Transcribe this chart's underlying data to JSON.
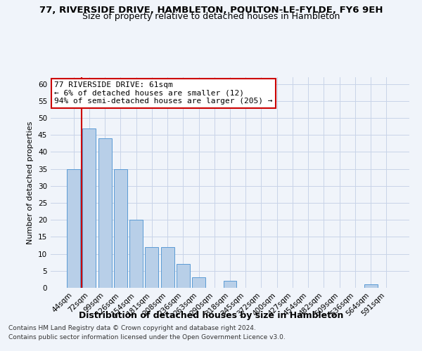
{
  "title1": "77, RIVERSIDE DRIVE, HAMBLETON, POULTON-LE-FYLDE, FY6 9EH",
  "title2": "Size of property relative to detached houses in Hambleton",
  "xlabel": "Distribution of detached houses by size in Hambleton",
  "ylabel": "Number of detached properties",
  "categories": [
    "44sqm",
    "72sqm",
    "99sqm",
    "126sqm",
    "154sqm",
    "181sqm",
    "208sqm",
    "236sqm",
    "263sqm",
    "290sqm",
    "318sqm",
    "345sqm",
    "372sqm",
    "400sqm",
    "427sqm",
    "454sqm",
    "482sqm",
    "509sqm",
    "536sqm",
    "564sqm",
    "591sqm"
  ],
  "values": [
    35,
    47,
    44,
    35,
    20,
    12,
    12,
    7,
    3,
    0,
    2,
    0,
    0,
    0,
    0,
    0,
    0,
    0,
    0,
    1,
    0
  ],
  "bar_color": "#b8cfe8",
  "bar_edge_color": "#5b9bd5",
  "annotation_text": "77 RIVERSIDE DRIVE: 61sqm\n← 6% of detached houses are smaller (12)\n94% of semi-detached houses are larger (205) →",
  "annotation_box_color": "white",
  "annotation_box_edge_color": "#cc0000",
  "vline_color": "#cc0000",
  "vline_pos": 0.5,
  "ylim": [
    0,
    62
  ],
  "yticks": [
    0,
    5,
    10,
    15,
    20,
    25,
    30,
    35,
    40,
    45,
    50,
    55,
    60
  ],
  "grid_color": "#c8d4e8",
  "footer1": "Contains HM Land Registry data © Crown copyright and database right 2024.",
  "footer2": "Contains public sector information licensed under the Open Government Licence v3.0.",
  "bg_color": "#f0f4fa",
  "title1_fontsize": 9.5,
  "title2_fontsize": 9,
  "xlabel_fontsize": 9,
  "ylabel_fontsize": 8,
  "tick_fontsize": 7.5,
  "annotation_fontsize": 8,
  "footer_fontsize": 6.5
}
